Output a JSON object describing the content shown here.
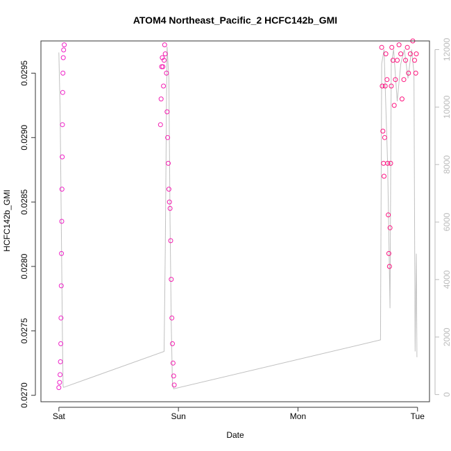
{
  "chart_data": {
    "type": "scatter",
    "title": "ATOM4 Northeast_Pacific_2 HCFC142b_GMI",
    "xlabel": "Date",
    "ylabel": "HCFC142b_GMI",
    "xlim_days": [
      -0.15,
      3.1
    ],
    "ylim": [
      0.02695,
      0.02975
    ],
    "ylim_right": [
      -250,
      12300
    ],
    "x_ticks": [
      {
        "value": 0,
        "label": "Sat"
      },
      {
        "value": 1,
        "label": "Sun"
      },
      {
        "value": 2,
        "label": "Mon"
      },
      {
        "value": 3,
        "label": "Tue"
      }
    ],
    "y_ticks": [
      {
        "value": 0.027,
        "label": "0.0270"
      },
      {
        "value": 0.0275,
        "label": "0.0275"
      },
      {
        "value": 0.028,
        "label": "0.0280"
      },
      {
        "value": 0.0285,
        "label": "0.0285"
      },
      {
        "value": 0.029,
        "label": "0.0290"
      },
      {
        "value": 0.0295,
        "label": "0.0295"
      }
    ],
    "y_ticks_right": [
      {
        "value": 0,
        "label": "0"
      },
      {
        "value": 2000,
        "label": "2000"
      },
      {
        "value": 4000,
        "label": "4000"
      },
      {
        "value": 6000,
        "label": "6000"
      },
      {
        "value": 8000,
        "label": "8000"
      },
      {
        "value": 10000,
        "label": "10000"
      },
      {
        "value": 12000,
        "label": "12000"
      }
    ],
    "colors": {
      "points_start": "#ee22cc",
      "points_end": "#ff1177",
      "altitude_line": "#c0c0c0",
      "axis": "#333333",
      "right_axis": "#bbbbbb"
    },
    "series": [
      {
        "kind": "points",
        "points": [
          [
            0.0,
            0.02706
          ],
          [
            0.006,
            0.0271
          ],
          [
            0.01,
            0.02716
          ],
          [
            0.013,
            0.02726
          ],
          [
            0.016,
            0.0274
          ],
          [
            0.018,
            0.0276
          ],
          [
            0.02,
            0.02785
          ],
          [
            0.022,
            0.0281
          ],
          [
            0.024,
            0.02835
          ],
          [
            0.026,
            0.0286
          ],
          [
            0.028,
            0.02885
          ],
          [
            0.03,
            0.0291
          ],
          [
            0.032,
            0.02935
          ],
          [
            0.034,
            0.0295
          ],
          [
            0.037,
            0.02962
          ],
          [
            0.04,
            0.02968
          ],
          [
            0.045,
            0.02972
          ],
          [
            0.85,
            0.0291
          ],
          [
            0.855,
            0.0293
          ],
          [
            0.86,
            0.02955
          ],
          [
            0.865,
            0.02962
          ],
          [
            0.87,
            0.02955
          ],
          [
            0.875,
            0.0294
          ],
          [
            0.88,
            0.0296
          ],
          [
            0.885,
            0.02972
          ],
          [
            0.89,
            0.02965
          ],
          [
            0.9,
            0.0295
          ],
          [
            0.905,
            0.0292
          ],
          [
            0.91,
            0.029
          ],
          [
            0.915,
            0.0288
          ],
          [
            0.92,
            0.0286
          ],
          [
            0.925,
            0.0285
          ],
          [
            0.93,
            0.02845
          ],
          [
            0.935,
            0.0282
          ],
          [
            0.94,
            0.0279
          ],
          [
            0.945,
            0.0276
          ],
          [
            0.95,
            0.0274
          ],
          [
            0.955,
            0.02725
          ],
          [
            0.96,
            0.02715
          ],
          [
            0.965,
            0.02708
          ],
          [
            2.7,
            0.0297
          ],
          [
            2.705,
            0.0294
          ],
          [
            2.71,
            0.02905
          ],
          [
            2.715,
            0.0288
          ],
          [
            2.72,
            0.0287
          ],
          [
            2.725,
            0.029
          ],
          [
            2.73,
            0.0294
          ],
          [
            2.735,
            0.02965
          ],
          [
            2.745,
            0.02945
          ],
          [
            2.75,
            0.0288
          ],
          [
            2.755,
            0.0284
          ],
          [
            2.76,
            0.0281
          ],
          [
            2.765,
            0.028
          ],
          [
            2.77,
            0.0283
          ],
          [
            2.775,
            0.0288
          ],
          [
            2.78,
            0.0294
          ],
          [
            2.785,
            0.0297
          ],
          [
            2.795,
            0.0296
          ],
          [
            2.805,
            0.02925
          ],
          [
            2.815,
            0.02945
          ],
          [
            2.83,
            0.0296
          ],
          [
            2.845,
            0.02972
          ],
          [
            2.86,
            0.02965
          ],
          [
            2.87,
            0.0293
          ],
          [
            2.885,
            0.02945
          ],
          [
            2.9,
            0.0296
          ],
          [
            2.915,
            0.0297
          ],
          [
            2.925,
            0.0295
          ],
          [
            2.94,
            0.02965
          ],
          [
            2.96,
            0.02975
          ],
          [
            2.975,
            0.0296
          ],
          [
            2.985,
            0.0295
          ],
          [
            2.99,
            0.02965
          ]
        ]
      },
      {
        "kind": "altitude-line",
        "points": [
          [
            0.0,
            11900
          ],
          [
            0.01,
            10000
          ],
          [
            0.02,
            6000
          ],
          [
            0.03,
            2000
          ],
          [
            0.035,
            300
          ],
          [
            0.04,
            250
          ],
          [
            0.88,
            1500
          ],
          [
            0.89,
            5000
          ],
          [
            0.9,
            10000
          ],
          [
            0.905,
            12100
          ],
          [
            0.92,
            11000
          ],
          [
            0.93,
            6000
          ],
          [
            0.94,
            2500
          ],
          [
            0.95,
            400
          ],
          [
            0.96,
            200
          ],
          [
            2.69,
            1900
          ],
          [
            2.7,
            11500
          ],
          [
            2.72,
            12000
          ],
          [
            2.75,
            8000
          ],
          [
            2.77,
            3000
          ],
          [
            2.78,
            11500
          ],
          [
            2.8,
            12000
          ],
          [
            2.83,
            10200
          ],
          [
            2.86,
            11500
          ],
          [
            2.89,
            12000
          ],
          [
            2.92,
            11000
          ],
          [
            2.95,
            12000
          ],
          [
            2.97,
            11200
          ],
          [
            2.98,
            1500
          ],
          [
            2.99,
            4900
          ],
          [
            2.995,
            1300
          ]
        ]
      }
    ]
  }
}
